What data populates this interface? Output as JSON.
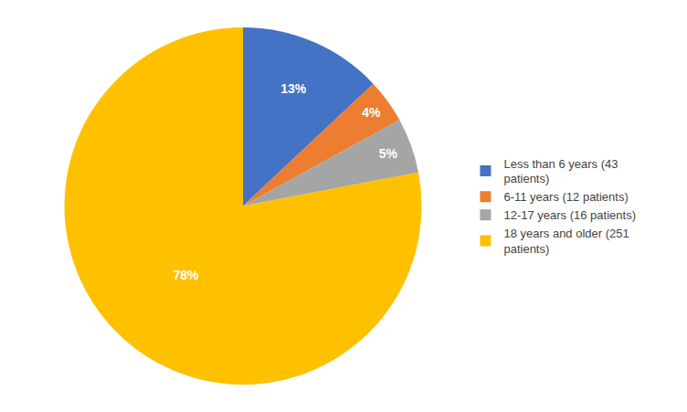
{
  "chart_data": {
    "type": "pie",
    "categories": [
      "Less than 6 years (43\npatients)",
      "6-11 years (12 patients)",
      "12-17 years (16 patients)",
      "18 years and older (251\npatients)"
    ],
    "values": [
      13,
      4,
      5,
      78
    ],
    "value_labels": [
      "13%",
      "4%",
      "5%",
      "78%"
    ],
    "colors": [
      "#4472C4",
      "#ED7D31",
      "#A5A5A5",
      "#FFC000"
    ],
    "data_labels": true,
    "legend": "right"
  }
}
